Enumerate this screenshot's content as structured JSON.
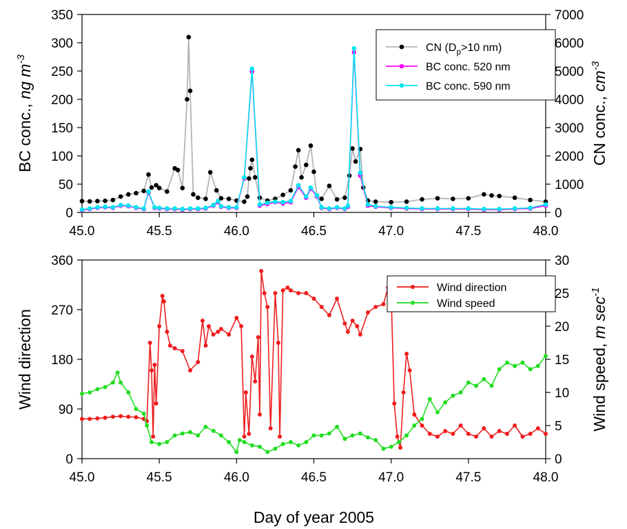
{
  "chart_data": [
    {
      "type": "line",
      "panel": "top",
      "xlim": [
        45.0,
        48.0
      ],
      "xticks": [
        "45.0",
        "45.5",
        "46.0",
        "46.5",
        "47.0",
        "47.5",
        "48.0"
      ],
      "ylim_left": [
        0,
        350
      ],
      "yticks_left": [
        "0",
        "50",
        "100",
        "150",
        "200",
        "250",
        "300",
        "350"
      ],
      "ylabel_left": {
        "main": "BC conc., ",
        "italic": "ng m",
        "sup": "-3"
      },
      "ylim_right": [
        0,
        7000
      ],
      "yticks_right": [
        "0",
        "1000",
        "2000",
        "3000",
        "4000",
        "5000",
        "6000",
        "7000"
      ],
      "ylabel_right": {
        "main": "CN conc., ",
        "italic": "cm",
        "sup": "-3"
      },
      "legend": {
        "position": "top-right"
      },
      "series": [
        {
          "name": "CN (D",
          "name_sub": "p",
          "name_tail": ">10 nm)",
          "axis": "right",
          "line_color": "#b4b4b4",
          "marker_color": "#000000",
          "x": [
            45.0,
            45.05,
            45.1,
            45.15,
            45.2,
            45.25,
            45.3,
            45.35,
            45.4,
            45.43,
            45.45,
            45.48,
            45.5,
            45.55,
            45.6,
            45.62,
            45.65,
            45.68,
            45.69,
            45.7,
            45.72,
            45.75,
            45.8,
            45.83,
            45.87,
            45.9,
            45.95,
            46.0,
            46.05,
            46.07,
            46.08,
            46.09,
            46.1,
            46.12,
            46.15,
            46.2,
            46.25,
            46.3,
            46.35,
            46.38,
            46.4,
            46.42,
            46.45,
            46.48,
            46.5,
            46.52,
            46.55,
            46.6,
            46.65,
            46.7,
            46.73,
            46.75,
            46.77,
            46.8,
            46.82,
            46.85,
            46.9,
            47.0,
            47.1,
            47.2,
            47.3,
            47.4,
            47.5,
            47.6,
            47.65,
            47.7,
            47.8,
            47.9,
            48.0
          ],
          "y": [
            400,
            390,
            400,
            410,
            440,
            560,
            640,
            680,
            760,
            1340,
            880,
            960,
            860,
            740,
            1560,
            1500,
            860,
            4000,
            6200,
            4300,
            640,
            520,
            480,
            1420,
            780,
            500,
            480,
            420,
            380,
            560,
            1200,
            1560,
            1860,
            1240,
            520,
            420,
            480,
            620,
            780,
            1620,
            2200,
            1240,
            1680,
            2360,
            1440,
            600,
            480,
            940,
            460,
            520,
            1300,
            2260,
            1800,
            2240,
            880,
            420,
            380,
            360,
            380,
            460,
            500,
            480,
            500,
            640,
            600,
            580,
            520,
            440,
            380
          ]
        },
        {
          "name": "BC conc. 520 nm",
          "axis": "left",
          "line_color": "#ff00ff",
          "marker_color": "#ff00ff",
          "x": [
            45.0,
            45.05,
            45.1,
            45.15,
            45.2,
            45.25,
            45.3,
            45.35,
            45.4,
            45.43,
            45.47,
            45.5,
            45.55,
            45.6,
            45.65,
            45.7,
            45.75,
            45.8,
            45.85,
            45.88,
            45.9,
            45.95,
            46.0,
            46.05,
            46.1,
            46.15,
            46.2,
            46.25,
            46.3,
            46.35,
            46.4,
            46.45,
            46.48,
            46.52,
            46.55,
            46.6,
            46.65,
            46.7,
            46.72,
            46.76,
            46.8,
            46.85,
            46.9,
            47.0,
            47.1,
            47.2,
            47.3,
            47.4,
            47.5,
            47.6,
            47.7,
            47.8,
            47.9,
            48.0
          ],
          "y": [
            4,
            6,
            8,
            9,
            8,
            12,
            11,
            8,
            6,
            35,
            8,
            7,
            6,
            6,
            5,
            6,
            6,
            7,
            12,
            18,
            10,
            8,
            8,
            60,
            249,
            12,
            15,
            18,
            16,
            18,
            45,
            26,
            42,
            28,
            8,
            6,
            8,
            6,
            10,
            283,
            65,
            12,
            10,
            8,
            7,
            6,
            6,
            6,
            6,
            5,
            5,
            6,
            7,
            12
          ]
        },
        {
          "name": "BC conc. 590 nm",
          "axis": "left",
          "line_color": "#00e5ee",
          "marker_color": "#00e5ee",
          "x": [
            45.0,
            45.05,
            45.1,
            45.15,
            45.2,
            45.25,
            45.3,
            45.35,
            45.4,
            45.43,
            45.47,
            45.5,
            45.55,
            45.6,
            45.65,
            45.7,
            45.75,
            45.8,
            45.85,
            45.88,
            45.9,
            45.95,
            46.0,
            46.05,
            46.1,
            46.15,
            46.2,
            46.25,
            46.3,
            46.35,
            46.4,
            46.45,
            46.48,
            46.52,
            46.55,
            46.6,
            46.65,
            46.7,
            46.72,
            46.76,
            46.8,
            46.85,
            46.9,
            47.0,
            47.1,
            47.2,
            47.3,
            47.4,
            47.5,
            47.6,
            47.7,
            47.8,
            47.9,
            48.0
          ],
          "y": [
            5,
            7,
            9,
            10,
            9,
            13,
            12,
            9,
            7,
            37,
            9,
            8,
            7,
            7,
            6,
            7,
            7,
            8,
            13,
            20,
            11,
            9,
            9,
            62,
            254,
            14,
            17,
            19,
            18,
            20,
            48,
            28,
            44,
            30,
            9,
            7,
            9,
            7,
            12,
            290,
            70,
            14,
            11,
            9,
            8,
            7,
            7,
            7,
            7,
            6,
            6,
            7,
            8,
            14
          ]
        }
      ]
    },
    {
      "type": "line",
      "panel": "bottom",
      "xlim": [
        45.0,
        48.0
      ],
      "xticks": [
        "45.0",
        "45.5",
        "46.0",
        "46.5",
        "47.0",
        "47.5",
        "48.0"
      ],
      "xlabel": "Day of year 2005",
      "ylim_left": [
        0,
        360
      ],
      "yticks_left": [
        "0",
        "90",
        "180",
        "270",
        "360"
      ],
      "ylabel_left": {
        "main": "Wind direction",
        "italic": "",
        "sup": ""
      },
      "ylim_right": [
        0,
        30
      ],
      "yticks_right": [
        "0",
        "5",
        "10",
        "15",
        "20",
        "25",
        "30"
      ],
      "ylabel_right": {
        "main": "Wind speed, ",
        "italic": "m sec",
        "sup": "-1"
      },
      "legend": {
        "position": "top-right"
      },
      "series": [
        {
          "name": "Wind direction",
          "axis": "left",
          "line_color": "#ee1c1c",
          "marker_color": "#ee1c1c",
          "x": [
            45.0,
            45.05,
            45.1,
            45.15,
            45.2,
            45.25,
            45.3,
            45.35,
            45.4,
            45.42,
            45.44,
            45.45,
            45.46,
            45.47,
            45.48,
            45.5,
            45.52,
            45.53,
            45.55,
            45.57,
            45.6,
            45.65,
            45.7,
            45.75,
            45.78,
            45.8,
            45.82,
            45.85,
            45.88,
            45.9,
            45.95,
            46.0,
            46.03,
            46.05,
            46.06,
            46.08,
            46.1,
            46.12,
            46.14,
            46.15,
            46.16,
            46.18,
            46.2,
            46.22,
            46.25,
            46.27,
            46.28,
            46.3,
            46.33,
            46.35,
            46.4,
            46.45,
            46.5,
            46.55,
            46.6,
            46.65,
            46.7,
            46.72,
            46.75,
            46.78,
            46.8,
            46.85,
            46.9,
            46.95,
            46.98,
            47.0,
            47.02,
            47.04,
            47.06,
            47.08,
            47.1,
            47.12,
            47.15,
            47.2,
            47.25,
            47.3,
            47.35,
            47.4,
            47.45,
            47.5,
            47.55,
            47.6,
            47.65,
            47.7,
            47.75,
            47.8,
            47.85,
            47.9,
            47.95,
            48.0
          ],
          "y": [
            72,
            72,
            73,
            74,
            76,
            77,
            76,
            75,
            72,
            68,
            210,
            160,
            40,
            170,
            100,
            240,
            295,
            285,
            230,
            205,
            200,
            195,
            160,
            175,
            250,
            205,
            240,
            225,
            230,
            235,
            225,
            255,
            240,
            40,
            120,
            45,
            185,
            140,
            220,
            80,
            340,
            300,
            275,
            55,
            300,
            210,
            40,
            305,
            310,
            305,
            300,
            300,
            290,
            275,
            260,
            290,
            245,
            230,
            250,
            240,
            225,
            265,
            275,
            280,
            310,
            300,
            100,
            40,
            20,
            120,
            190,
            160,
            80,
            60,
            45,
            40,
            50,
            45,
            60,
            45,
            40,
            55,
            40,
            50,
            45,
            60,
            40,
            45,
            55,
            45
          ]
        },
        {
          "name": "Wind speed",
          "axis": "right",
          "line_color": "#22dd22",
          "marker_color": "#22dd22",
          "x": [
            45.0,
            45.05,
            45.1,
            45.15,
            45.2,
            45.23,
            45.25,
            45.3,
            45.35,
            45.4,
            45.42,
            45.45,
            45.5,
            45.55,
            45.6,
            45.65,
            45.7,
            45.75,
            45.8,
            45.85,
            45.9,
            45.95,
            46.0,
            46.02,
            46.05,
            46.1,
            46.15,
            46.2,
            46.25,
            46.3,
            46.35,
            46.4,
            46.45,
            46.5,
            46.55,
            46.6,
            46.65,
            46.7,
            46.75,
            46.8,
            46.85,
            46.9,
            46.95,
            47.0,
            47.05,
            47.1,
            47.15,
            47.2,
            47.25,
            47.3,
            47.35,
            47.4,
            47.45,
            47.5,
            47.55,
            47.6,
            47.65,
            47.7,
            47.75,
            47.8,
            47.85,
            47.9,
            47.95,
            48.0
          ],
          "y": [
            9.8,
            10.0,
            10.5,
            10.8,
            11.5,
            13.0,
            11.5,
            10.0,
            7.5,
            6.8,
            5.0,
            2.5,
            2.2,
            2.5,
            3.5,
            3.8,
            4.0,
            3.5,
            4.8,
            4.2,
            3.5,
            2.5,
            1.0,
            2.8,
            2.5,
            2.0,
            1.8,
            1.0,
            1.5,
            2.2,
            2.5,
            2.0,
            2.5,
            3.5,
            3.5,
            3.8,
            4.8,
            3.0,
            3.5,
            3.8,
            3.2,
            2.8,
            1.5,
            1.8,
            2.5,
            3.5,
            5.0,
            6.0,
            9.0,
            7.0,
            8.5,
            9.5,
            10.0,
            11.5,
            11.0,
            12.0,
            11.0,
            13.5,
            14.5,
            14.0,
            14.5,
            13.5,
            14.0,
            15.5
          ]
        }
      ]
    }
  ]
}
